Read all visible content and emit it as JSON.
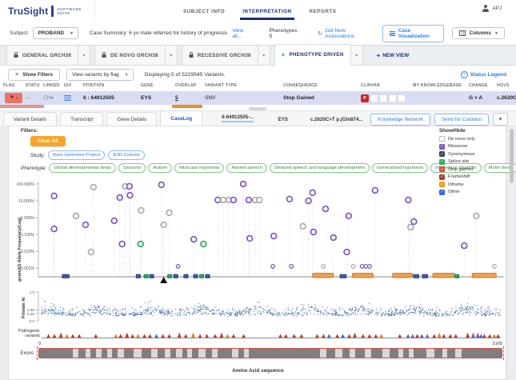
{
  "app": {
    "brand": "TruSight",
    "brand_sub1": "SOFTWARE",
    "brand_sub2": "SUITE",
    "user": "APJ"
  },
  "nav": {
    "tabs": [
      {
        "label": "SUBJECT INFO",
        "active": false
      },
      {
        "label": "INTERPRETATION",
        "active": true
      },
      {
        "label": "REPORTS",
        "active": false
      }
    ]
  },
  "subject_bar": {
    "subject_label": "Subject",
    "subject_value": "PROBAND",
    "case_summary": "Case Summary: 6 yo male referred for history of progressive night ...",
    "view_all": "View all...",
    "phenotypes": "Phenotypes: 5",
    "get_new_associations": "Get New Associations",
    "case_visualization": "Case Visualization",
    "columns": "Columns"
  },
  "view_tabs": {
    "tabs": [
      {
        "label": "GENERAL GRCH38",
        "locked": true,
        "active": false
      },
      {
        "label": "DE NOVO GRCH38",
        "locked": true,
        "active": false
      },
      {
        "label": "RECESSIVE GRCH38",
        "locked": true,
        "active": false
      },
      {
        "label": "PHENOTYPE DRIVEN",
        "locked": false,
        "active": true
      }
    ],
    "new_view": "NEW VIEW"
  },
  "toolbar": {
    "show_filters": "Show Filters",
    "view_by": "View variants by flag",
    "displaying": "Displaying 5 of 5229545 Variants.",
    "status_legend": "Status Legend"
  },
  "variant_table": {
    "columns": [
      "FLAG",
      "STATUS",
      "LINKED",
      "IGV",
      "POSITION",
      "GENE",
      "OVERLAP",
      "VARIANT TYPE",
      "CONSEQUENCE",
      "CLINVAR",
      "MY KNOWLEDGEBASE",
      "CHANGE",
      "HGVS"
    ],
    "row": {
      "status": "—",
      "linked": "CH",
      "position": "6 : 64912505",
      "gene": "EYS",
      "overlap": "5",
      "variant_type": "SNV",
      "consequence": "Stop Gained",
      "clinvar_flag": "P",
      "change": "G > A",
      "hgvs": "c.2620C>T p"
    }
  },
  "detail_bar": {
    "tabs": [
      "Variant Details",
      "Transcript",
      "Gene Details",
      "CaseLog"
    ],
    "active_tab": "CaseLog",
    "variant_id": "6-64912505-...",
    "gene": "EYS",
    "hgvs": "c.2620C>T p.(Gln874...",
    "count": "1",
    "cytoband": "6q12",
    "knowledge_network": "Knowledge Network",
    "send_for_curation": "Send for Curation"
  },
  "caselog": {
    "filters_label": "Filters:",
    "clear_all": "Clear All",
    "study_label": "Study:",
    "study_chips": [
      "Rare Genomes Project",
      "ASD Cohorts"
    ],
    "phenotype_label": "Phenotype:",
    "phenotype_chips": [
      "Global developmental delay",
      "Seizures",
      "Autism",
      "Muscular hypotonia",
      "Absent speech",
      "Delayed speech and language development",
      "Generalized hypotonia",
      "Intellectual disability",
      "Motor delay"
    ],
    "show_hide_label": "Show/Hide",
    "legend": [
      {
        "label": "De novo only",
        "checked": false,
        "color": "#ffffff"
      },
      {
        "label": "Missense",
        "checked": true,
        "color": "#7e57c2"
      },
      {
        "label": "Synonymous",
        "checked": true,
        "color": "#34495e"
      },
      {
        "label": "Splice site",
        "checked": true,
        "color": "#27ae60"
      },
      {
        "label": "Stop gained",
        "checked": true,
        "color": "#e74c3c"
      },
      {
        "label": "Frameshift",
        "checked": true,
        "color": "#b03a2e"
      },
      {
        "label": "Inframe",
        "checked": true,
        "color": "#f39c12"
      },
      {
        "label": "Other",
        "checked": true,
        "color": "#2d6cdf"
      }
    ]
  },
  "chart_data": [
    {
      "type": "scatter",
      "name": "gnomad_allele_frequency",
      "ylabel": "gnomAD Allele Frequency(Log)",
      "yticks": [
        {
          "label": "100.000%",
          "v": 2
        },
        {
          "label": "10.000%",
          "v": 1
        },
        {
          "label": "1.000%",
          "v": 0
        },
        {
          "label": "0.100%",
          "v": -1
        },
        {
          "label": "0.010%",
          "v": -2
        },
        {
          "label": "0.001%",
          "v": -3
        }
      ],
      "point_colors": {
        "m": "#7e57c2",
        "o": "#ababab",
        "g": "#27ae60"
      },
      "points": [
        {
          "x": 0.034,
          "v": 1.29,
          "t": "m"
        },
        {
          "x": 0.034,
          "v": -0.67,
          "t": "m"
        },
        {
          "x": 0.081,
          "v": 0.1,
          "t": "o"
        },
        {
          "x": 0.102,
          "v": -0.43,
          "t": "m"
        },
        {
          "x": 0.119,
          "v": 1.81,
          "t": "o"
        },
        {
          "x": 0.114,
          "v": -2.05,
          "t": "o"
        },
        {
          "x": 0.164,
          "v": -0.19,
          "t": "m"
        },
        {
          "x": 0.176,
          "v": 1.19,
          "t": "m"
        },
        {
          "x": 0.188,
          "v": 1.86,
          "t": "o"
        },
        {
          "x": 0.197,
          "v": 1.86,
          "t": "m"
        },
        {
          "x": 0.198,
          "v": 1.33,
          "t": "m"
        },
        {
          "x": 0.181,
          "v": -1.57,
          "t": "m"
        },
        {
          "x": 0.222,
          "v": 0.43,
          "t": "o"
        },
        {
          "x": 0.221,
          "v": -1.57,
          "t": "g"
        },
        {
          "x": 0.266,
          "v": 1.95,
          "t": "m"
        },
        {
          "x": 0.283,
          "v": 0.29,
          "t": "o"
        },
        {
          "x": 0.271,
          "v": -0.43,
          "t": "o"
        },
        {
          "x": 0.302,
          "v": -2.9,
          "t": "m",
          "s": 1
        },
        {
          "x": 0.336,
          "v": -1.29,
          "t": "m"
        },
        {
          "x": 0.357,
          "v": -1.57,
          "t": "g"
        },
        {
          "x": 0.388,
          "v": 1.05,
          "t": "m"
        },
        {
          "x": 0.4,
          "v": 1.05,
          "t": "o"
        },
        {
          "x": 0.412,
          "v": 1.05,
          "t": "o"
        },
        {
          "x": 0.422,
          "v": 1.05,
          "t": "m"
        },
        {
          "x": 0.443,
          "v": 2.0,
          "t": "m"
        },
        {
          "x": 0.455,
          "v": 1.05,
          "t": "m"
        },
        {
          "x": 0.469,
          "v": 1.05,
          "t": "o"
        },
        {
          "x": 0.478,
          "v": 1.05,
          "t": "o"
        },
        {
          "x": 0.457,
          "v": -1.24,
          "t": "m"
        },
        {
          "x": 0.507,
          "v": -2.9,
          "t": "m",
          "s": 1
        },
        {
          "x": 0.509,
          "v": -1.1,
          "t": "m"
        },
        {
          "x": 0.543,
          "v": 1.1,
          "t": "m"
        },
        {
          "x": 0.547,
          "v": -2.9,
          "t": "m",
          "s": 1
        },
        {
          "x": 0.572,
          "v": -0.52,
          "t": "o"
        },
        {
          "x": 0.584,
          "v": 1.0,
          "t": "m"
        },
        {
          "x": 0.593,
          "v": 1.48,
          "t": "m"
        },
        {
          "x": 0.595,
          "v": -0.86,
          "t": "m"
        },
        {
          "x": 0.621,
          "v": 0.52,
          "t": "m"
        },
        {
          "x": 0.616,
          "v": -2.9,
          "t": "o",
          "s": 1
        },
        {
          "x": 0.638,
          "v": -1.19,
          "t": "m"
        },
        {
          "x": 0.671,
          "v": 0.1,
          "t": "m"
        },
        {
          "x": 0.667,
          "v": -2.05,
          "t": "m"
        },
        {
          "x": 0.681,
          "v": -2.9,
          "t": "o",
          "s": 1
        },
        {
          "x": 0.7,
          "v": -2.9,
          "t": "m",
          "s": 1
        },
        {
          "x": 0.708,
          "v": -2.9,
          "t": "m",
          "s": 1
        },
        {
          "x": 0.716,
          "v": -2.9,
          "t": "m",
          "s": 1
        },
        {
          "x": 0.728,
          "v": 1.62,
          "t": "m"
        },
        {
          "x": 0.8,
          "v": 1.05,
          "t": "m"
        },
        {
          "x": 0.805,
          "v": -0.57,
          "t": "o"
        },
        {
          "x": 0.812,
          "v": -0.24,
          "t": "m"
        },
        {
          "x": 0.921,
          "v": -1.67,
          "t": "m"
        },
        {
          "x": 0.947,
          "v": 0.1,
          "t": "o"
        },
        {
          "x": 0.986,
          "v": -2.9,
          "t": "o",
          "s": 1
        }
      ],
      "axis_squares": [
        {
          "x": 0.059,
          "t": "n",
          "w": 9
        },
        {
          "x": 0.216,
          "t": "n"
        },
        {
          "x": 0.233,
          "t": "g"
        },
        {
          "x": 0.245,
          "t": "n"
        },
        {
          "x": 0.284,
          "t": "g"
        },
        {
          "x": 0.297,
          "t": "n"
        },
        {
          "x": 0.319,
          "t": "n"
        },
        {
          "x": 0.34,
          "t": "n"
        },
        {
          "x": 0.353,
          "t": "g"
        },
        {
          "x": 0.366,
          "t": "n"
        },
        {
          "x": 0.659,
          "t": "n",
          "w": 8
        },
        {
          "x": 0.817,
          "t": "n",
          "w": 7
        },
        {
          "x": 0.836,
          "t": "n",
          "w": 7
        },
        {
          "x": 0.905,
          "t": "g"
        }
      ],
      "orange_bars": [
        {
          "x0": 0.593,
          "x1": 0.638
        },
        {
          "x0": 0.679,
          "x1": 0.724
        },
        {
          "x0": 0.766,
          "x1": 0.809
        },
        {
          "x0": 0.853,
          "x1": 0.9
        },
        {
          "x0": 0.938,
          "x1": 0.99
        }
      ],
      "selected_marker_x": 0.271
    },
    {
      "type": "scatter",
      "name": "primate_ai",
      "ylabel": "Primate AI",
      "yticks": [
        {
          "label": "1.0",
          "v": 1.0
        },
        {
          "label": "0.38",
          "v": 0.38
        },
        {
          "label": "0.25",
          "v": 0.25
        },
        {
          "label": "0.0",
          "v": 0.0
        }
      ],
      "dashed_thresholds": [
        0.38,
        0.25
      ],
      "point_color": "#2e5fa3",
      "n_points": 1150,
      "seed": 42,
      "band": "dense noise band approx 0.15-0.6 with periodic peaks"
    },
    {
      "type": "scatter",
      "name": "pathogenic_variants",
      "label": "Pathogenic variants",
      "marker": "triangle",
      "colors": {
        "r": "#c0392b",
        "o": "#e67e22",
        "b": "#2d6cdf",
        "p": "#7b5ea7"
      },
      "points": [
        [
          0.015,
          "r"
        ],
        [
          0.028,
          "r"
        ],
        [
          0.042,
          "r"
        ],
        [
          0.055,
          "o"
        ],
        [
          0.068,
          "r"
        ],
        [
          0.082,
          "r"
        ],
        [
          0.118,
          "r"
        ],
        [
          0.162,
          "o"
        ],
        [
          0.172,
          "r"
        ],
        [
          0.186,
          "r"
        ],
        [
          0.198,
          "r"
        ],
        [
          0.21,
          "o"
        ],
        [
          0.224,
          "r"
        ],
        [
          0.236,
          "r"
        ],
        [
          0.25,
          "b"
        ],
        [
          0.264,
          "r"
        ],
        [
          0.278,
          "r"
        ],
        [
          0.3,
          "r"
        ],
        [
          0.314,
          "r"
        ],
        [
          0.33,
          "o"
        ],
        [
          0.345,
          "r"
        ],
        [
          0.36,
          "r"
        ],
        [
          0.378,
          "r"
        ],
        [
          0.392,
          "r"
        ],
        [
          0.405,
          "o"
        ],
        [
          0.418,
          "r"
        ],
        [
          0.44,
          "r"
        ],
        [
          0.52,
          "r"
        ],
        [
          0.532,
          "r"
        ],
        [
          0.55,
          "r"
        ],
        [
          0.566,
          "r"
        ],
        [
          0.6,
          "r"
        ],
        [
          0.614,
          "r"
        ],
        [
          0.626,
          "b"
        ],
        [
          0.644,
          "r"
        ],
        [
          0.656,
          "b"
        ],
        [
          0.67,
          "r"
        ],
        [
          0.682,
          "r"
        ],
        [
          0.7,
          "r"
        ],
        [
          0.714,
          "r"
        ],
        [
          0.728,
          "r"
        ],
        [
          0.74,
          "o"
        ],
        [
          0.78,
          "r"
        ],
        [
          0.798,
          "p"
        ],
        [
          0.808,
          "p"
        ],
        [
          0.818,
          "r"
        ],
        [
          0.828,
          "p"
        ],
        [
          0.84,
          "p"
        ],
        [
          0.855,
          "r"
        ],
        [
          0.866,
          "o"
        ],
        [
          0.876,
          "r"
        ],
        [
          0.89,
          "r"
        ],
        [
          0.902,
          "r"
        ],
        [
          0.928,
          "r"
        ],
        [
          0.94,
          "p"
        ],
        [
          0.95,
          "p"
        ],
        [
          0.957,
          "b"
        ],
        [
          0.964,
          "r"
        ],
        [
          0.976,
          "r"
        ],
        [
          0.986,
          "o"
        ],
        [
          0.994,
          "r"
        ]
      ]
    },
    {
      "type": "track",
      "name": "exons",
      "label": "Exons",
      "start_label": "0",
      "end_label": "3165",
      "xlabel": "Amino Acid sequence",
      "bar_color": "#7f7f7f",
      "border_color": "#cf5048",
      "gaps": [
        [
          0.072,
          0.013
        ],
        [
          0.1,
          0.01
        ],
        [
          0.122,
          0.013
        ],
        [
          0.147,
          0.011
        ],
        [
          0.17,
          0.013
        ],
        [
          0.205,
          0.016
        ],
        [
          0.243,
          0.013
        ],
        [
          0.272,
          0.011
        ],
        [
          0.296,
          0.013
        ],
        [
          0.32,
          0.011
        ],
        [
          0.344,
          0.016
        ],
        [
          0.374,
          0.011
        ],
        [
          0.417,
          0.013
        ],
        [
          0.443,
          0.01
        ],
        [
          0.608,
          0.013
        ],
        [
          0.64,
          0.016
        ],
        [
          0.672,
          0.011
        ],
        [
          0.705,
          0.013
        ],
        [
          0.742,
          0.016
        ],
        [
          0.776,
          0.011
        ],
        [
          0.8,
          0.01
        ],
        [
          0.838,
          0.016
        ],
        [
          0.872,
          0.011
        ],
        [
          0.9,
          0.013
        ]
      ]
    }
  ]
}
